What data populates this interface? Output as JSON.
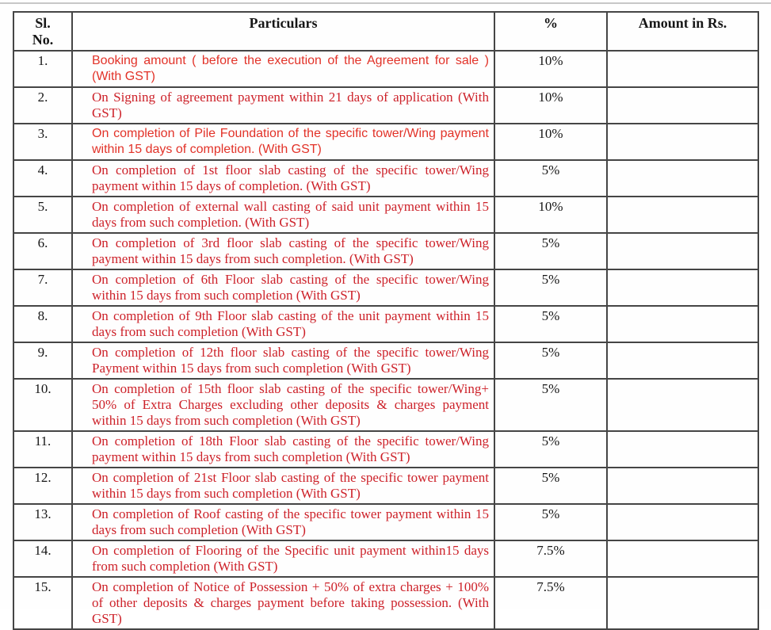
{
  "colors": {
    "red_serif": "#cd2129",
    "red_sans": "#e23228",
    "black": "#161616",
    "border": "#454545"
  },
  "table": {
    "headers": [
      {
        "label": "Sl.\nNo."
      },
      {
        "label": "Particulars"
      },
      {
        "label": "%"
      },
      {
        "label": "Amount in Rs."
      }
    ],
    "rows": [
      {
        "no": "1.",
        "particulars": "Booking amount ( before the execution of the Agreement for sale ) (With GST)",
        "percent": "10%",
        "amount": "",
        "variant": "sans"
      },
      {
        "no": "2.",
        "particulars": "On Signing of agreement payment within 21 days of application (With GST)",
        "percent": "10%",
        "amount": "",
        "variant": "serif"
      },
      {
        "no": "3.",
        "particulars": "On completion of Pile Foundation of the specific tower/Wing payment within 15 days of completion. (With GST)",
        "percent": "10%",
        "amount": "",
        "variant": "sans"
      },
      {
        "no": "4.",
        "particulars": "On completion of 1st floor slab casting of the specific tower/Wing payment within 15 days of completion. (With GST)",
        "percent": "5%",
        "amount": "",
        "variant": "serif"
      },
      {
        "no": "5.",
        "particulars": "On completion of external wall casting of said unit payment within 15 days from such completion. (With GST)",
        "percent": "10%",
        "amount": "",
        "variant": "serif"
      },
      {
        "no": "6.",
        "particulars": "On completion of 3rd floor slab casting of the specific tower/Wing payment within 15 days from such completion. (With GST)",
        "percent": "5%",
        "amount": "",
        "variant": "serif"
      },
      {
        "no": "7.",
        "particulars": "On completion of 6th Floor slab casting of the specific tower/Wing within 15 days from such completion (With GST)",
        "percent": "5%",
        "amount": "",
        "variant": "serif"
      },
      {
        "no": "8.",
        "particulars": "On completion of 9th Floor slab casting of the unit payment within 15 days from such completion (With GST)",
        "percent": "5%",
        "amount": "",
        "variant": "serif"
      },
      {
        "no": "9.",
        "particulars": "On completion of 12th floor slab casting of the specific tower/Wing Payment within 15 days from such completion (With GST)",
        "percent": "5%",
        "amount": "",
        "variant": "serif"
      },
      {
        "no": "10.",
        "particulars": "On completion of 15th floor slab casting of the specific tower/Wing+ 50% of Extra Charges excluding other deposits & charges payment within 15 days from such completion (With GST)",
        "percent": "5%",
        "amount": "",
        "variant": "serif"
      },
      {
        "no": "11.",
        "particulars": "On completion of 18th Floor slab casting of the specific tower/Wing payment within 15 days from such completion (With GST)",
        "percent": "5%",
        "amount": "",
        "variant": "serif"
      },
      {
        "no": "12.",
        "particulars": "On completion of 21st Floor slab casting of the specific tower payment within 15 days from such completion (With GST)",
        "percent": "5%",
        "amount": "",
        "variant": "serif"
      },
      {
        "no": "13.",
        "particulars": "On completion of Roof casting of the specific tower payment within 15 days from such completion (With GST)",
        "percent": "5%",
        "amount": "",
        "variant": "serif"
      },
      {
        "no": "14.",
        "particulars": "On completion of Flooring of the Specific unit payment within15 days from such completion (With GST)",
        "percent": "7.5%",
        "amount": "",
        "variant": "serif"
      },
      {
        "no": "15.",
        "particulars": "On completion of Notice of Possession + 50% of extra charges + 100% of other deposits & charges payment before taking possession. (With GST)",
        "percent": "7.5%",
        "amount": "",
        "variant": "serif"
      }
    ]
  }
}
